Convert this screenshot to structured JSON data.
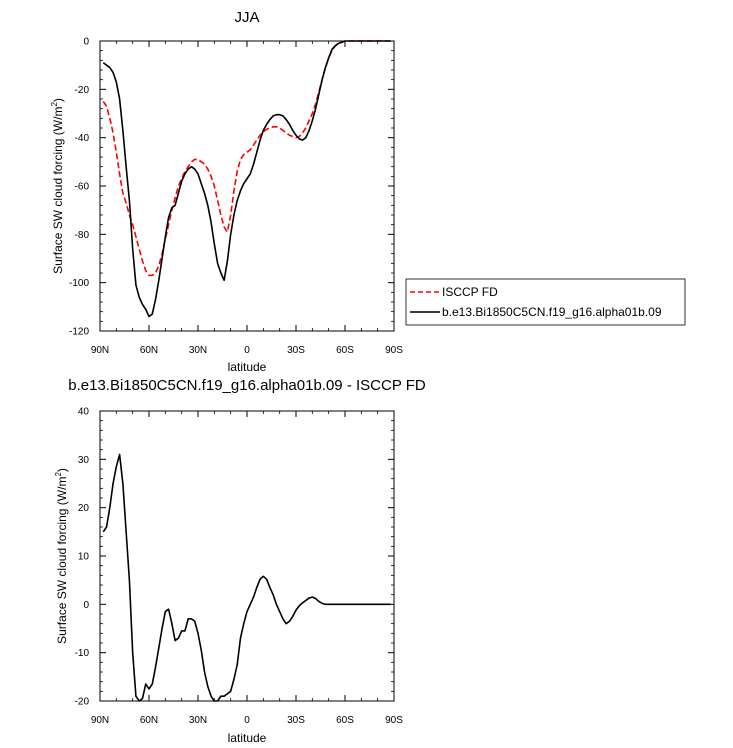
{
  "chart_data": [
    {
      "type": "line",
      "title": "JJA",
      "xlabel": "latitude",
      "ylabel": "Surface SW cloud forcing (W/m",
      "ylabel_sup": "2",
      "ylabel_end": ")",
      "xlim": [
        90,
        -90
      ],
      "ylim": [
        -120,
        0
      ],
      "x_ticks": [
        90,
        60,
        30,
        0,
        -30,
        -60,
        -90
      ],
      "x_tick_labels": [
        "90N",
        "60N",
        "30N",
        "0",
        "30S",
        "60S",
        "90S"
      ],
      "y_ticks": [
        0,
        -20,
        -40,
        -60,
        -80,
        -100,
        -120
      ],
      "y_tick_labels": [
        "0",
        "-20",
        "-40",
        "-60",
        "-80",
        "-100",
        "-120"
      ],
      "legend_position": "right",
      "series": [
        {
          "name": "ISCCP FD",
          "color": "#ff0000",
          "dash": "dashed",
          "x": [
            88,
            86,
            84,
            82,
            80,
            78,
            76,
            74,
            72,
            70,
            68,
            66,
            64,
            62,
            60,
            58,
            56,
            54,
            52,
            50,
            48,
            46,
            44,
            42,
            40,
            38,
            36,
            34,
            32,
            30,
            28,
            26,
            24,
            22,
            20,
            18,
            16,
            14,
            12,
            10,
            8,
            6,
            4,
            2,
            0,
            -2,
            -4,
            -6,
            -8,
            -10,
            -12,
            -14,
            -16,
            -18,
            -20,
            -22,
            -24,
            -26,
            -28,
            -30,
            -32,
            -34,
            -36,
            -38,
            -40,
            -42,
            -44,
            -46,
            -48,
            -50,
            -52,
            -54,
            -56,
            -58,
            -60,
            -62,
            -64,
            -66,
            -68,
            -70,
            -72,
            -74,
            -76,
            -78,
            -80,
            -82,
            -84,
            -86,
            -88
          ],
          "y": [
            -25,
            -27,
            -32,
            -38,
            -46,
            -55,
            -63,
            -67,
            -72,
            -76,
            -81,
            -86,
            -91,
            -95,
            -97,
            -97,
            -96,
            -93,
            -88,
            -82,
            -76,
            -70,
            -65,
            -60,
            -57,
            -54,
            -52,
            -50,
            -49,
            -49,
            -50,
            -51,
            -53,
            -56,
            -60,
            -66,
            -72,
            -77,
            -79,
            -72,
            -62,
            -54,
            -49,
            -47,
            -46,
            -45,
            -43,
            -41,
            -39,
            -37.5,
            -36.5,
            -36,
            -35.5,
            -35.5,
            -36,
            -37,
            -38,
            -39,
            -39.5,
            -40,
            -39.5,
            -38,
            -36,
            -33,
            -30,
            -26,
            -21,
            -16,
            -11,
            -7,
            -4,
            -2,
            -1,
            -0.5,
            0,
            0,
            0,
            0,
            0,
            0,
            0,
            0,
            0,
            0,
            0,
            0,
            0,
            0,
            0
          ]
        },
        {
          "name": "b.e13.Bi1850C5CN.f19_g16.alpha01b.09",
          "color": "#000000",
          "dash": "solid",
          "x": [
            88,
            86,
            84,
            82,
            80,
            78,
            76,
            74,
            72,
            70,
            68,
            66,
            64,
            62,
            60,
            58,
            56,
            54,
            52,
            50,
            48,
            46,
            44,
            42,
            40,
            38,
            36,
            34,
            32,
            30,
            28,
            26,
            24,
            22,
            20,
            18,
            16,
            14,
            12,
            10,
            8,
            6,
            4,
            2,
            0,
            -2,
            -4,
            -6,
            -8,
            -10,
            -12,
            -14,
            -16,
            -18,
            -20,
            -22,
            -24,
            -26,
            -28,
            -30,
            -32,
            -34,
            -36,
            -38,
            -40,
            -42,
            -44,
            -46,
            -48,
            -50,
            -52,
            -54,
            -56,
            -58,
            -60,
            -62,
            -64,
            -66,
            -68,
            -70,
            -72,
            -74,
            -76,
            -78,
            -80,
            -82,
            -84,
            -86,
            -88
          ],
          "y": [
            -9,
            -10,
            -11,
            -13,
            -17,
            -24,
            -37,
            -52,
            -66,
            -86,
            -101,
            -106,
            -109,
            -111,
            -114,
            -113,
            -107,
            -99,
            -90,
            -81,
            -73,
            -69,
            -68,
            -63,
            -58,
            -55,
            -53,
            -52,
            -53,
            -55,
            -59,
            -63,
            -68,
            -75,
            -84,
            -92,
            -96,
            -99,
            -91,
            -80,
            -72,
            -66,
            -62,
            -59,
            -57,
            -55,
            -51,
            -46,
            -41,
            -37,
            -34.5,
            -32.5,
            -31,
            -30.5,
            -30.5,
            -31,
            -32.5,
            -34.5,
            -37,
            -39,
            -40.5,
            -41,
            -40,
            -37,
            -33,
            -28,
            -22,
            -16,
            -11,
            -7,
            -3.5,
            -2,
            -1,
            -0.5,
            0,
            0,
            0,
            0,
            0,
            0,
            0,
            0,
            0,
            0,
            0,
            0,
            0,
            0,
            0
          ]
        }
      ]
    },
    {
      "type": "line",
      "title": "b.e13.Bi1850C5CN.f19_g16.alpha01b.09 - ISCCP FD",
      "xlabel": "latitude",
      "ylabel": "Surface SW cloud forcing (W/m",
      "ylabel_sup": "2",
      "ylabel_end": ")",
      "xlim": [
        90,
        -90
      ],
      "ylim": [
        -20,
        40
      ],
      "x_ticks": [
        90,
        60,
        30,
        0,
        -30,
        -60,
        -90
      ],
      "x_tick_labels": [
        "90N",
        "60N",
        "30N",
        "0",
        "30S",
        "60S",
        "90S"
      ],
      "y_ticks": [
        40,
        30,
        20,
        10,
        0,
        -10,
        -20
      ],
      "y_tick_labels": [
        "40",
        "30",
        "20",
        "10",
        "0",
        "-10",
        "-20"
      ],
      "series": [
        {
          "color": "#000000",
          "dash": "solid",
          "x": [
            88,
            86,
            84,
            82,
            80,
            78,
            76,
            74,
            72,
            70,
            68,
            66,
            64,
            62,
            60,
            58,
            56,
            54,
            52,
            50,
            48,
            46,
            44,
            42,
            40,
            38,
            36,
            34,
            32,
            30,
            28,
            26,
            24,
            22,
            20,
            18,
            16,
            14,
            12,
            10,
            8,
            6,
            4,
            2,
            0,
            -2,
            -4,
            -6,
            -8,
            -10,
            -12,
            -14,
            -16,
            -18,
            -20,
            -22,
            -24,
            -26,
            -28,
            -30,
            -32,
            -34,
            -36,
            -38,
            -40,
            -42,
            -44,
            -46,
            -48,
            -50,
            -52,
            -54,
            -56,
            -58,
            -60,
            -62,
            -64,
            -66,
            -68,
            -70,
            -72,
            -74,
            -76,
            -78,
            -80,
            -82,
            -84,
            -86,
            -88
          ],
          "y": [
            15,
            16,
            20,
            25,
            28.5,
            31,
            25,
            15,
            5,
            -10,
            -19,
            -20,
            -19.5,
            -16.5,
            -17.5,
            -16.5,
            -13,
            -9,
            -5,
            -1.5,
            -1,
            -4,
            -7.5,
            -7,
            -5.5,
            -5.5,
            -3,
            -3,
            -3.5,
            -6,
            -9.5,
            -14,
            -17,
            -19,
            -20,
            -20,
            -19,
            -19,
            -18.5,
            -18,
            -15.5,
            -12.5,
            -7,
            -4,
            -1.5,
            0,
            1.5,
            3.5,
            5.2,
            5.8,
            5.2,
            3.5,
            2,
            0,
            -1.5,
            -3,
            -4,
            -3.5,
            -2.5,
            -1.2,
            -0.3,
            0.3,
            0.8,
            1.3,
            1.5,
            1.2,
            0.6,
            0.2,
            0,
            0,
            0,
            0,
            0,
            0,
            0,
            0,
            0,
            0,
            0,
            0,
            0,
            0,
            0,
            0,
            0,
            0,
            0,
            0,
            0
          ]
        }
      ]
    }
  ]
}
